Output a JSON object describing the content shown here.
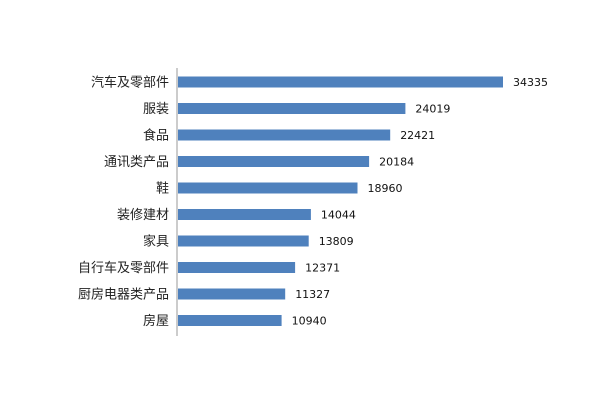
{
  "chart_data": {
    "type": "bar",
    "orientation": "horizontal",
    "categories": [
      "汽车及零部件",
      "服装",
      "食品",
      "通讯类产品",
      "鞋",
      "装修建材",
      "家具",
      "自行车及零部件",
      "厨房电器类产品",
      "房屋"
    ],
    "values": [
      34335,
      24019,
      22421,
      20184,
      18960,
      14044,
      13809,
      12371,
      11327,
      10940
    ],
    "title": "",
    "xlabel": "",
    "ylabel": "",
    "xlim": [
      0,
      35000
    ],
    "grid": false,
    "legend": "none",
    "data_labels": true,
    "colors": {
      "bar": "#4f81bd",
      "axis": "#9a9a9a",
      "text": "#222222"
    }
  }
}
